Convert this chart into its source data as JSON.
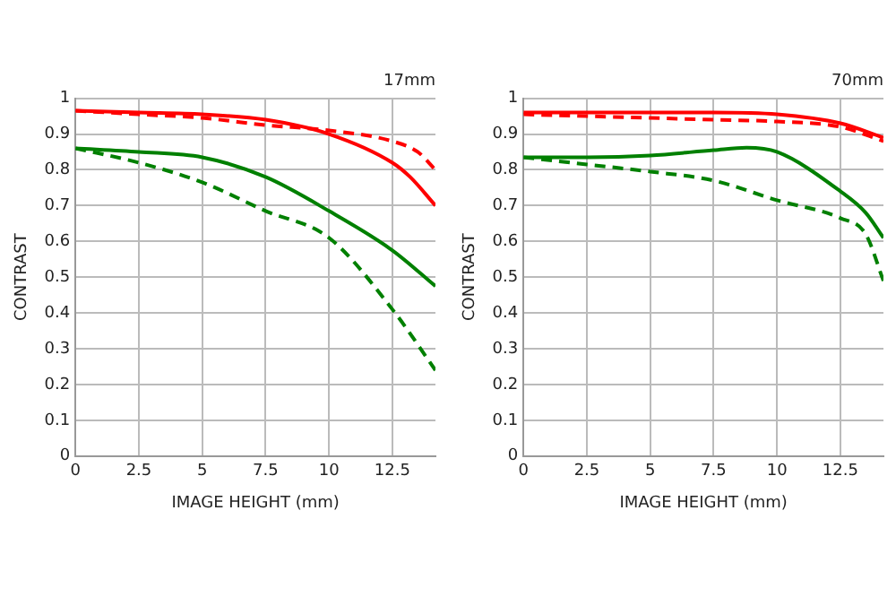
{
  "chart_data": [
    {
      "type": "line",
      "title": "17mm",
      "xlabel": "IMAGE HEIGHT (mm)",
      "ylabel": "CONTRAST",
      "xlim": [
        0,
        14.2
      ],
      "xticks": [
        0,
        2.5,
        5,
        7.5,
        10,
        12.5
      ],
      "ylim": [
        0,
        1
      ],
      "yticks": [
        0,
        0.1,
        0.2,
        0.3,
        0.4,
        0.5,
        0.6,
        0.7,
        0.8,
        0.9,
        1
      ],
      "grid": true,
      "marker": "none",
      "series": [
        {
          "color": "#ff0000",
          "line_style": "solid",
          "x": [
            0,
            2.5,
            5,
            7.5,
            10,
            12.5,
            13.2,
            14.2
          ],
          "values": [
            0.965,
            0.96,
            0.955,
            0.94,
            0.9,
            0.82,
            0.78,
            0.7
          ]
        },
        {
          "color": "#ff0000",
          "line_style": "dashed",
          "x": [
            0,
            2.5,
            5,
            7.5,
            10,
            12.5,
            13.5,
            14.2
          ],
          "values": [
            0.965,
            0.955,
            0.945,
            0.925,
            0.91,
            0.88,
            0.85,
            0.8
          ]
        },
        {
          "color": "#008000",
          "line_style": "solid",
          "x": [
            0,
            2.5,
            5,
            7.5,
            10,
            12.5,
            14.2
          ],
          "values": [
            0.86,
            0.85,
            0.835,
            0.78,
            0.685,
            0.575,
            0.475
          ]
        },
        {
          "color": "#008000",
          "line_style": "dashed",
          "x": [
            0,
            2.5,
            5,
            7.5,
            10,
            12.5,
            14.2
          ],
          "values": [
            0.86,
            0.82,
            0.765,
            0.685,
            0.61,
            0.41,
            0.24
          ]
        }
      ]
    },
    {
      "type": "line",
      "title": "70mm",
      "xlabel": "IMAGE HEIGHT (mm)",
      "ylabel": "CONTRAST",
      "xlim": [
        0,
        14.2
      ],
      "xticks": [
        0,
        2.5,
        5,
        7.5,
        10,
        12.5
      ],
      "ylim": [
        0,
        1
      ],
      "yticks": [
        0,
        0.1,
        0.2,
        0.3,
        0.4,
        0.5,
        0.6,
        0.7,
        0.8,
        0.9,
        1
      ],
      "grid": true,
      "marker": "none",
      "series": [
        {
          "color": "#ff0000",
          "line_style": "solid",
          "x": [
            0,
            2.5,
            5,
            7.5,
            10,
            12.5,
            14.2
          ],
          "values": [
            0.96,
            0.96,
            0.96,
            0.96,
            0.955,
            0.93,
            0.89
          ]
        },
        {
          "color": "#ff0000",
          "line_style": "dashed",
          "x": [
            0,
            2.5,
            5,
            7.5,
            10,
            12.5,
            14.2
          ],
          "values": [
            0.955,
            0.95,
            0.945,
            0.94,
            0.935,
            0.92,
            0.88
          ]
        },
        {
          "color": "#008000",
          "line_style": "solid",
          "x": [
            0,
            2.5,
            5,
            7.5,
            8.8,
            10,
            12.5,
            13.5,
            14.2
          ],
          "values": [
            0.835,
            0.835,
            0.84,
            0.855,
            0.862,
            0.85,
            0.74,
            0.68,
            0.61
          ]
        },
        {
          "color": "#008000",
          "line_style": "dashed",
          "x": [
            0,
            2.5,
            5,
            7.5,
            10,
            12.5,
            13.5,
            14.2
          ],
          "values": [
            0.835,
            0.815,
            0.795,
            0.77,
            0.715,
            0.665,
            0.62,
            0.49
          ]
        }
      ]
    }
  ]
}
